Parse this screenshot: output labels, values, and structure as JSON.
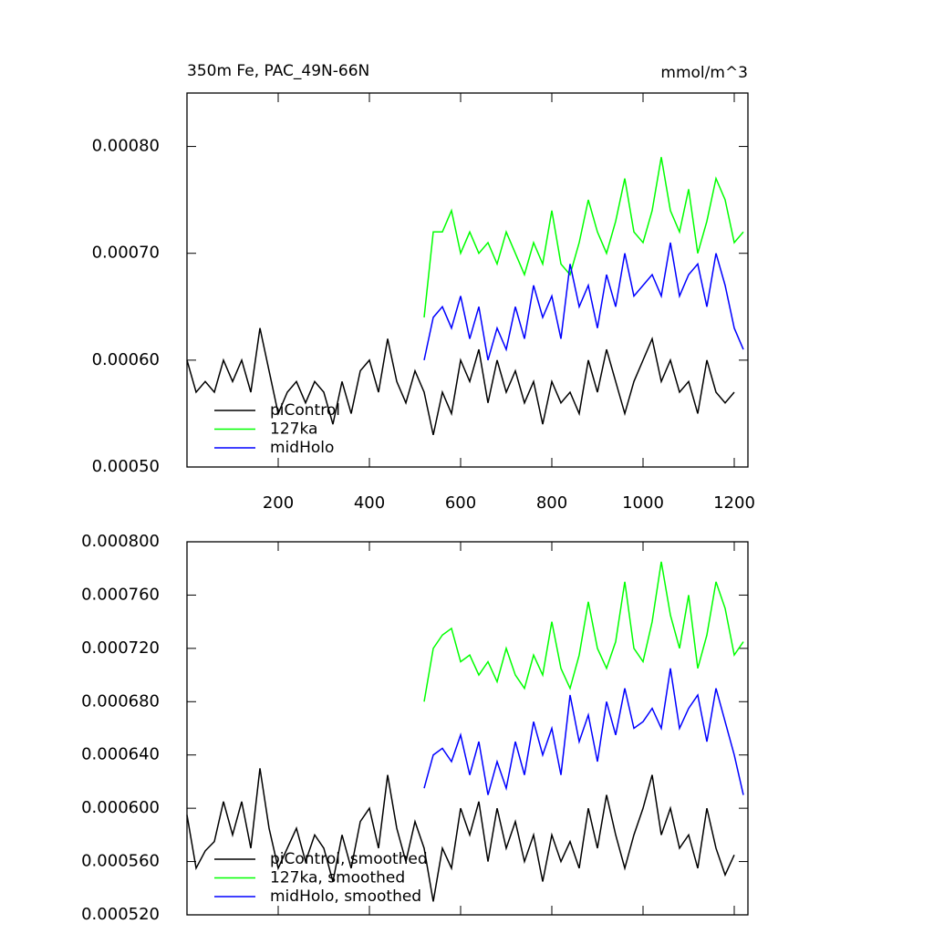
{
  "chart_data": [
    {
      "type": "line",
      "title": "350m Fe, PAC_49N-66N",
      "units": "mmol/m^3",
      "xlim": [
        0,
        1230
      ],
      "xticks": [
        200,
        400,
        600,
        800,
        1000,
        1200
      ],
      "ylim": [
        0.0005,
        0.00085
      ],
      "yticks": [
        {
          "value": 0.0005,
          "label": "0.00050"
        },
        {
          "value": 0.0006,
          "label": "0.00060"
        },
        {
          "value": 0.0007,
          "label": "0.00070"
        },
        {
          "value": 0.0008,
          "label": "0.00080"
        }
      ],
      "legend": "bottom-left",
      "series": [
        {
          "name": "piControl",
          "color": "#000000",
          "x": [
            0,
            20,
            40,
            60,
            80,
            100,
            120,
            140,
            160,
            180,
            200,
            220,
            240,
            260,
            280,
            300,
            320,
            340,
            360,
            380,
            400,
            420,
            440,
            460,
            480,
            500,
            520,
            540,
            560,
            580,
            600,
            620,
            640,
            660,
            680,
            700,
            720,
            740,
            760,
            780,
            800,
            820,
            840,
            860,
            880,
            900,
            920,
            940,
            960,
            980,
            1000,
            1020,
            1040,
            1060,
            1080,
            1100,
            1120,
            1140,
            1160,
            1180,
            1200
          ],
          "values": [
            0.0006,
            0.00057,
            0.00058,
            0.00057,
            0.0006,
            0.00058,
            0.0006,
            0.00057,
            0.00063,
            0.00059,
            0.00055,
            0.00057,
            0.00058,
            0.00056,
            0.00058,
            0.00057,
            0.00054,
            0.00058,
            0.00055,
            0.00059,
            0.0006,
            0.00057,
            0.00062,
            0.00058,
            0.00056,
            0.00059,
            0.00057,
            0.00053,
            0.00057,
            0.00055,
            0.0006,
            0.00058,
            0.00061,
            0.00056,
            0.0006,
            0.00057,
            0.00059,
            0.00056,
            0.00058,
            0.00054,
            0.00058,
            0.00056,
            0.00057,
            0.00055,
            0.0006,
            0.00057,
            0.00061,
            0.00058,
            0.00055,
            0.00058,
            0.0006,
            0.00062,
            0.00058,
            0.0006,
            0.00057,
            0.00058,
            0.00055,
            0.0006,
            0.00057,
            0.00056,
            0.00057
          ]
        },
        {
          "name": "127ka",
          "color": "#00ff00",
          "x": [
            520,
            540,
            560,
            580,
            600,
            620,
            640,
            660,
            680,
            700,
            720,
            740,
            760,
            780,
            800,
            820,
            840,
            860,
            880,
            900,
            920,
            940,
            960,
            980,
            1000,
            1020,
            1040,
            1060,
            1080,
            1100,
            1120,
            1140,
            1160,
            1180,
            1200,
            1220
          ],
          "values": [
            0.00064,
            0.00072,
            0.00072,
            0.00074,
            0.0007,
            0.00072,
            0.0007,
            0.00071,
            0.00069,
            0.00072,
            0.0007,
            0.00068,
            0.00071,
            0.00069,
            0.00074,
            0.00069,
            0.00068,
            0.00071,
            0.00075,
            0.00072,
            0.0007,
            0.00073,
            0.00077,
            0.00072,
            0.00071,
            0.00074,
            0.00079,
            0.00074,
            0.00072,
            0.00076,
            0.0007,
            0.00073,
            0.00077,
            0.00075,
            0.00071,
            0.00072
          ]
        },
        {
          "name": "midHolo",
          "color": "#0000ff",
          "x": [
            520,
            540,
            560,
            580,
            600,
            620,
            640,
            660,
            680,
            700,
            720,
            740,
            760,
            780,
            800,
            820,
            840,
            860,
            880,
            900,
            920,
            940,
            960,
            980,
            1000,
            1020,
            1040,
            1060,
            1080,
            1100,
            1120,
            1140,
            1160,
            1180,
            1200,
            1220
          ],
          "values": [
            0.0006,
            0.00064,
            0.00065,
            0.00063,
            0.00066,
            0.00062,
            0.00065,
            0.0006,
            0.00063,
            0.00061,
            0.00065,
            0.00062,
            0.00067,
            0.00064,
            0.00066,
            0.00062,
            0.00069,
            0.00065,
            0.00067,
            0.00063,
            0.00068,
            0.00065,
            0.0007,
            0.00066,
            0.00067,
            0.00068,
            0.00066,
            0.00071,
            0.00066,
            0.00068,
            0.00069,
            0.00065,
            0.0007,
            0.00067,
            0.00063,
            0.00061
          ]
        }
      ]
    },
    {
      "type": "line",
      "xlim": [
        0,
        1230
      ],
      "ylim": [
        0.00052,
        0.0008
      ],
      "yticks": [
        {
          "value": 0.00052,
          "label": "0.000520"
        },
        {
          "value": 0.00056,
          "label": "0.000560"
        },
        {
          "value": 0.0006,
          "label": "0.000600"
        },
        {
          "value": 0.00064,
          "label": "0.000640"
        },
        {
          "value": 0.00068,
          "label": "0.000680"
        },
        {
          "value": 0.00072,
          "label": "0.000720"
        },
        {
          "value": 0.00076,
          "label": "0.000760"
        },
        {
          "value": 0.0008,
          "label": "0.000800"
        }
      ],
      "legend": "bottom-left",
      "series": [
        {
          "name": "piControl, smoothed",
          "color": "#000000",
          "x": [
            0,
            20,
            40,
            60,
            80,
            100,
            120,
            140,
            160,
            180,
            200,
            220,
            240,
            260,
            280,
            300,
            320,
            340,
            360,
            380,
            400,
            420,
            440,
            460,
            480,
            500,
            520,
            540,
            560,
            580,
            600,
            620,
            640,
            660,
            680,
            700,
            720,
            740,
            760,
            780,
            800,
            820,
            840,
            860,
            880,
            900,
            920,
            940,
            960,
            980,
            1000,
            1020,
            1040,
            1060,
            1080,
            1100,
            1120,
            1140,
            1160,
            1180,
            1200
          ],
          "values": [
            0.000595,
            0.000555,
            0.000568,
            0.000575,
            0.000605,
            0.00058,
            0.000605,
            0.00057,
            0.00063,
            0.000585,
            0.000555,
            0.00057,
            0.000585,
            0.00056,
            0.00058,
            0.00057,
            0.000545,
            0.00058,
            0.000555,
            0.00059,
            0.0006,
            0.00057,
            0.000625,
            0.000585,
            0.00056,
            0.00059,
            0.00057,
            0.00053,
            0.00057,
            0.000555,
            0.0006,
            0.00058,
            0.000605,
            0.00056,
            0.0006,
            0.00057,
            0.00059,
            0.00056,
            0.00058,
            0.000545,
            0.00058,
            0.00056,
            0.000575,
            0.000555,
            0.0006,
            0.00057,
            0.00061,
            0.00058,
            0.000555,
            0.00058,
            0.0006,
            0.000625,
            0.00058,
            0.0006,
            0.00057,
            0.00058,
            0.000555,
            0.0006,
            0.00057,
            0.00055,
            0.000565
          ]
        },
        {
          "name": "127ka, smoothed",
          "color": "#00ff00",
          "x": [
            520,
            540,
            560,
            580,
            600,
            620,
            640,
            660,
            680,
            700,
            720,
            740,
            760,
            780,
            800,
            820,
            840,
            860,
            880,
            900,
            920,
            940,
            960,
            980,
            1000,
            1020,
            1040,
            1060,
            1080,
            1100,
            1120,
            1140,
            1160,
            1180,
            1200,
            1220
          ],
          "values": [
            0.00068,
            0.00072,
            0.00073,
            0.000735,
            0.00071,
            0.000715,
            0.0007,
            0.00071,
            0.000695,
            0.00072,
            0.0007,
            0.00069,
            0.000715,
            0.0007,
            0.00074,
            0.000705,
            0.00069,
            0.000715,
            0.000755,
            0.00072,
            0.000705,
            0.000725,
            0.00077,
            0.00072,
            0.00071,
            0.00074,
            0.000785,
            0.000745,
            0.00072,
            0.00076,
            0.000705,
            0.00073,
            0.00077,
            0.00075,
            0.000715,
            0.000725
          ]
        },
        {
          "name": "midHolo, smoothed",
          "color": "#0000ff",
          "x": [
            520,
            540,
            560,
            580,
            600,
            620,
            640,
            660,
            680,
            700,
            720,
            740,
            760,
            780,
            800,
            820,
            840,
            860,
            880,
            900,
            920,
            940,
            960,
            980,
            1000,
            1020,
            1040,
            1060,
            1080,
            1100,
            1120,
            1140,
            1160,
            1180,
            1200,
            1220
          ],
          "values": [
            0.000615,
            0.00064,
            0.000645,
            0.000635,
            0.000655,
            0.000625,
            0.00065,
            0.00061,
            0.000635,
            0.000615,
            0.00065,
            0.000625,
            0.000665,
            0.00064,
            0.00066,
            0.000625,
            0.000685,
            0.00065,
            0.00067,
            0.000635,
            0.00068,
            0.000655,
            0.00069,
            0.00066,
            0.000665,
            0.000675,
            0.00066,
            0.000705,
            0.00066,
            0.000675,
            0.000685,
            0.00065,
            0.00069,
            0.000665,
            0.00064,
            0.00061
          ]
        }
      ]
    }
  ]
}
